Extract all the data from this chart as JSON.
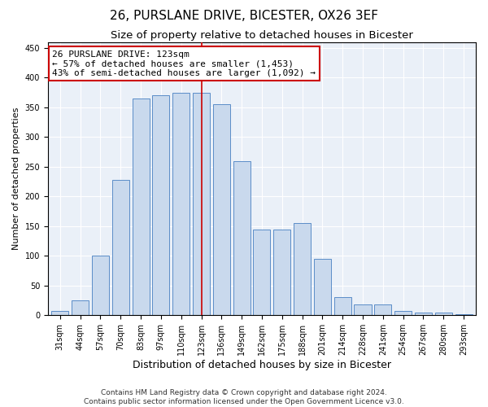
{
  "title": "26, PURSLANE DRIVE, BICESTER, OX26 3EF",
  "subtitle": "Size of property relative to detached houses in Bicester",
  "xlabel": "Distribution of detached houses by size in Bicester",
  "ylabel": "Number of detached properties",
  "categories": [
    "31sqm",
    "44sqm",
    "57sqm",
    "70sqm",
    "83sqm",
    "97sqm",
    "110sqm",
    "123sqm",
    "136sqm",
    "149sqm",
    "162sqm",
    "175sqm",
    "188sqm",
    "201sqm",
    "214sqm",
    "228sqm",
    "241sqm",
    "254sqm",
    "267sqm",
    "280sqm",
    "293sqm"
  ],
  "values": [
    8,
    25,
    100,
    228,
    365,
    370,
    375,
    375,
    355,
    260,
    145,
    145,
    155,
    95,
    30,
    18,
    18,
    8,
    4,
    4,
    2
  ],
  "bar_color": "#c9d9ed",
  "bar_edge_color": "#5b8dc8",
  "highlight_index": 7,
  "highlight_line_color": "#cc0000",
  "annotation_line1": "26 PURSLANE DRIVE: 123sqm",
  "annotation_line2": "← 57% of detached houses are smaller (1,453)",
  "annotation_line3": "43% of semi-detached houses are larger (1,092) →",
  "annotation_box_color": "#ffffff",
  "annotation_box_edge": "#cc0000",
  "ylim": [
    0,
    460
  ],
  "yticks": [
    0,
    50,
    100,
    150,
    200,
    250,
    300,
    350,
    400,
    450
  ],
  "background_color": "#eaf0f8",
  "footer_line1": "Contains HM Land Registry data © Crown copyright and database right 2024.",
  "footer_line2": "Contains public sector information licensed under the Open Government Licence v3.0.",
  "title_fontsize": 11,
  "subtitle_fontsize": 9.5,
  "xlabel_fontsize": 9,
  "ylabel_fontsize": 8,
  "tick_fontsize": 7,
  "annotation_fontsize": 8,
  "footer_fontsize": 6.5
}
